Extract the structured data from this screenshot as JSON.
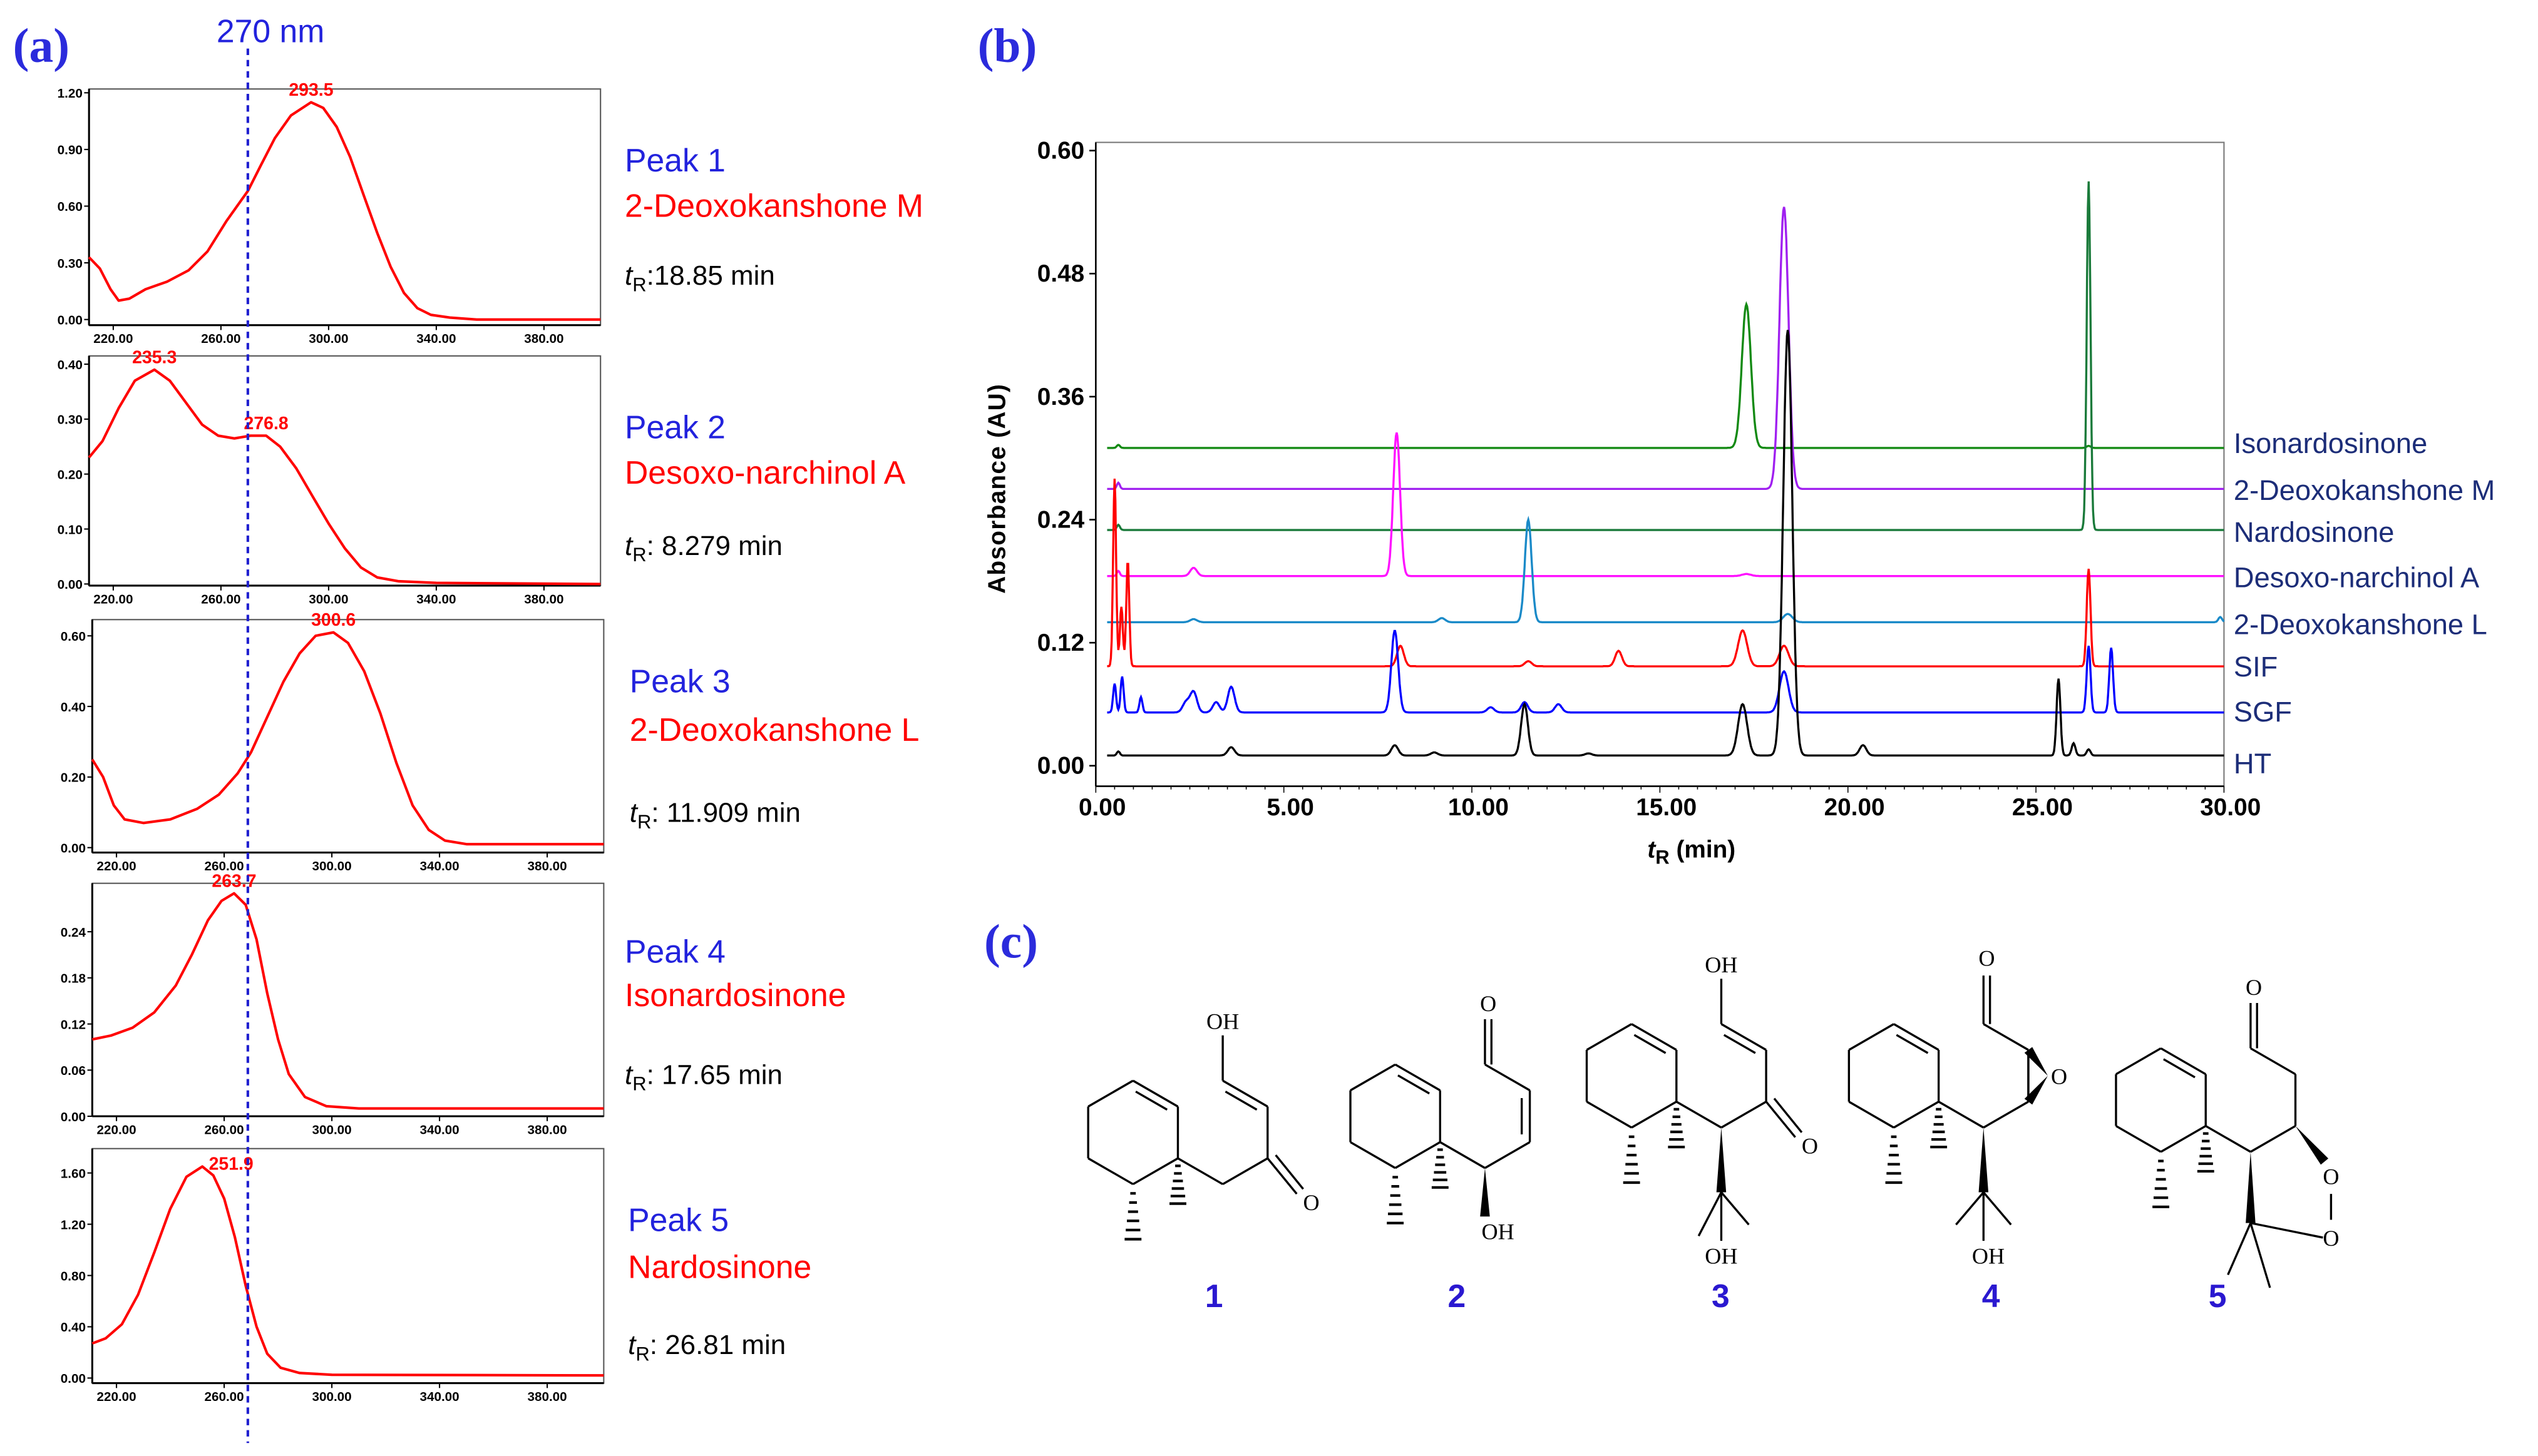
{
  "panels": {
    "a": "(a)",
    "b": "(b)",
    "c": "(c)"
  },
  "wavelength_marker": {
    "label": "270 nm",
    "value": 270,
    "color": "#2020d0"
  },
  "chart_data": [
    {
      "type": "line",
      "panel": "a",
      "name": "Peak 1 UV spectrum",
      "xlim": [
        211,
        401
      ],
      "ylim": [
        -0.03,
        1.22
      ],
      "xticks": [
        "220.00",
        "260.00",
        "300.00",
        "340.00",
        "380.00"
      ],
      "yticks": [
        "0.00",
        "0.30",
        "0.60",
        "0.90",
        "1.20"
      ],
      "color": "#ff0000",
      "annotations": [
        {
          "x": 293.5,
          "y": 1.15,
          "label": "293.5"
        }
      ],
      "points": [
        [
          211,
          0.33
        ],
        [
          215,
          0.27
        ],
        [
          219,
          0.16
        ],
        [
          222,
          0.1
        ],
        [
          226,
          0.11
        ],
        [
          232,
          0.16
        ],
        [
          240,
          0.2
        ],
        [
          248,
          0.26
        ],
        [
          255,
          0.36
        ],
        [
          262,
          0.52
        ],
        [
          267,
          0.62
        ],
        [
          270,
          0.68
        ],
        [
          275,
          0.82
        ],
        [
          280,
          0.96
        ],
        [
          286,
          1.08
        ],
        [
          293.5,
          1.15
        ],
        [
          298,
          1.12
        ],
        [
          303,
          1.02
        ],
        [
          308,
          0.86
        ],
        [
          313,
          0.66
        ],
        [
          318,
          0.46
        ],
        [
          323,
          0.28
        ],
        [
          328,
          0.14
        ],
        [
          333,
          0.06
        ],
        [
          338,
          0.025
        ],
        [
          345,
          0.01
        ],
        [
          355,
          0.0
        ],
        [
          401,
          0.0
        ]
      ],
      "peak": {
        "title": "Peak 1",
        "compound": "2-Deoxokanshone M",
        "tr_symbol": "t",
        "tr_sub": "R",
        "tr_value": ":18.85 min"
      }
    },
    {
      "type": "line",
      "panel": "a",
      "name": "Peak 2 UV spectrum",
      "xlim": [
        211,
        401
      ],
      "ylim": [
        -0.003,
        0.415
      ],
      "xticks": [
        "220.00",
        "260.00",
        "300.00",
        "340.00",
        "380.00"
      ],
      "yticks": [
        "0.00",
        "0.10",
        "0.20",
        "0.30",
        "0.40"
      ],
      "color": "#ff0000",
      "annotations": [
        {
          "x": 235.3,
          "y": 0.39,
          "label": "235.3"
        },
        {
          "x": 276.8,
          "y": 0.27,
          "label": "276.8"
        }
      ],
      "points": [
        [
          211,
          0.23
        ],
        [
          216,
          0.26
        ],
        [
          222,
          0.32
        ],
        [
          228,
          0.37
        ],
        [
          235.3,
          0.39
        ],
        [
          241,
          0.37
        ],
        [
          247,
          0.33
        ],
        [
          253,
          0.29
        ],
        [
          259,
          0.27
        ],
        [
          265,
          0.265
        ],
        [
          271,
          0.27
        ],
        [
          276.8,
          0.27
        ],
        [
          282,
          0.25
        ],
        [
          288,
          0.21
        ],
        [
          294,
          0.16
        ],
        [
          300,
          0.11
        ],
        [
          306,
          0.065
        ],
        [
          312,
          0.03
        ],
        [
          318,
          0.012
        ],
        [
          326,
          0.005
        ],
        [
          340,
          0.002
        ],
        [
          401,
          0.0
        ]
      ],
      "peak": {
        "title": "Peak 2",
        "compound": "Desoxo-narchinol A",
        "tr_symbol": "t",
        "tr_sub": "R",
        "tr_value": ": 8.279 min"
      }
    },
    {
      "type": "line",
      "panel": "a",
      "name": "Peak 3 UV spectrum",
      "xlim": [
        211,
        401
      ],
      "ylim": [
        -0.014,
        0.646
      ],
      "xticks": [
        "220.00",
        "260.00",
        "300.00",
        "340.00",
        "380.00"
      ],
      "yticks": [
        "0.00",
        "0.20",
        "0.40",
        "0.60"
      ],
      "color": "#ff0000",
      "annotations": [
        {
          "x": 300.6,
          "y": 0.61,
          "label": "300.6"
        }
      ],
      "points": [
        [
          211,
          0.25
        ],
        [
          215,
          0.2
        ],
        [
          219,
          0.12
        ],
        [
          223,
          0.08
        ],
        [
          230,
          0.07
        ],
        [
          240,
          0.08
        ],
        [
          250,
          0.11
        ],
        [
          258,
          0.15
        ],
        [
          265,
          0.21
        ],
        [
          270,
          0.27
        ],
        [
          276,
          0.37
        ],
        [
          282,
          0.47
        ],
        [
          288,
          0.55
        ],
        [
          294,
          0.6
        ],
        [
          300.6,
          0.61
        ],
        [
          306,
          0.58
        ],
        [
          312,
          0.5
        ],
        [
          318,
          0.38
        ],
        [
          324,
          0.24
        ],
        [
          330,
          0.12
        ],
        [
          336,
          0.05
        ],
        [
          342,
          0.02
        ],
        [
          350,
          0.01
        ],
        [
          401,
          0.01
        ]
      ],
      "peak": {
        "title": "Peak 3",
        "compound": "2-Deoxokanshone L",
        "tr_symbol": "t",
        "tr_sub": "R",
        "tr_value": ": 11.909 min"
      }
    },
    {
      "type": "line",
      "panel": "a",
      "name": "Peak 4 UV spectrum",
      "xlim": [
        211,
        401
      ],
      "ylim": [
        0.0,
        0.303
      ],
      "xticks": [
        "220.00",
        "260.00",
        "300.00",
        "340.00",
        "380.00"
      ],
      "yticks": [
        "0.00",
        "0.06",
        "0.12",
        "0.18",
        "0.24"
      ],
      "color": "#ff0000",
      "annotations": [
        {
          "x": 263.7,
          "y": 0.29,
          "label": "263.7"
        }
      ],
      "points": [
        [
          211,
          0.1
        ],
        [
          218,
          0.105
        ],
        [
          226,
          0.115
        ],
        [
          234,
          0.135
        ],
        [
          242,
          0.17
        ],
        [
          248,
          0.21
        ],
        [
          254,
          0.255
        ],
        [
          259,
          0.28
        ],
        [
          263.7,
          0.29
        ],
        [
          268,
          0.275
        ],
        [
          272,
          0.23
        ],
        [
          276,
          0.16
        ],
        [
          280,
          0.1
        ],
        [
          284,
          0.055
        ],
        [
          290,
          0.025
        ],
        [
          298,
          0.013
        ],
        [
          310,
          0.01
        ],
        [
          401,
          0.01
        ]
      ],
      "peak": {
        "title": "Peak 4",
        "compound": "Isonardosinone",
        "tr_symbol": "t",
        "tr_sub": "R",
        "tr_value": ": 17.65 min"
      }
    },
    {
      "type": "line",
      "panel": "a",
      "name": "Peak 5 UV spectrum",
      "xlim": [
        211,
        401
      ],
      "ylim": [
        -0.04,
        1.79
      ],
      "xticks": [
        "220.00",
        "260.00",
        "300.00",
        "340.00",
        "380.00"
      ],
      "yticks": [
        "0.00",
        "0.40",
        "0.80",
        "1.20",
        "1.60"
      ],
      "color": "#ff0000",
      "annotations": [
        {
          "x": 251.9,
          "y": 1.65,
          "label": "251.9"
        }
      ],
      "points": [
        [
          211,
          0.27
        ],
        [
          216,
          0.31
        ],
        [
          222,
          0.42
        ],
        [
          228,
          0.65
        ],
        [
          234,
          0.98
        ],
        [
          240,
          1.32
        ],
        [
          246,
          1.57
        ],
        [
          251.9,
          1.65
        ],
        [
          256,
          1.58
        ],
        [
          260,
          1.4
        ],
        [
          264,
          1.1
        ],
        [
          268,
          0.72
        ],
        [
          272,
          0.4
        ],
        [
          276,
          0.19
        ],
        [
          281,
          0.08
        ],
        [
          288,
          0.04
        ],
        [
          300,
          0.025
        ],
        [
          401,
          0.02
        ]
      ],
      "peak": {
        "title": "Peak 5",
        "compound": "Nardosinone",
        "tr_symbol": "t",
        "tr_sub": "R",
        "tr_value": ": 26.81 min"
      }
    },
    {
      "type": "line",
      "panel": "b",
      "xlabel_symbol": "t",
      "xlabel_sub": "R",
      "xlabel_rest": " (min)",
      "ylabel": "Absorbance (AU)",
      "xlim": [
        0,
        30
      ],
      "ylim": [
        -0.02,
        0.608
      ],
      "xticks": [
        "0.00",
        "5.00",
        "10.00",
        "15.00",
        "20.00",
        "25.00",
        "30.00"
      ],
      "xtick_values": [
        0,
        5,
        10,
        15,
        20,
        25,
        30
      ],
      "yticks": [
        "0.00",
        "0.12",
        "0.24",
        "0.36",
        "0.48",
        "0.60"
      ],
      "ytick_values": [
        0,
        0.12,
        0.24,
        0.36,
        0.48,
        0.6
      ],
      "series": [
        {
          "name": "Isonardosinone",
          "color": "#138a13",
          "baseline": 0.31,
          "peaks": [
            [
              0.6,
              0.313
            ],
            [
              17.3,
              0.45
            ],
            [
              26.4,
              0.312
            ]
          ]
        },
        {
          "name": "2-Deoxokanshone M",
          "color": "#a020f0",
          "baseline": 0.27,
          "peaks": [
            [
              0.6,
              0.276
            ],
            [
              18.3,
              0.545
            ]
          ]
        },
        {
          "name": "Nardosinone",
          "color": "#1a7a3a",
          "baseline": 0.23,
          "peaks": [
            [
              0.6,
              0.235
            ],
            [
              26.4,
              0.57
            ]
          ]
        },
        {
          "name": "Desoxo-narchinol A",
          "color": "#ff10ff",
          "baseline": 0.185,
          "peaks": [
            [
              0.6,
              0.19
            ],
            [
              2.6,
              0.193
            ],
            [
              8.0,
              0.325
            ],
            [
              17.3,
              0.187
            ]
          ]
        },
        {
          "name": "2-Deoxokanshone L",
          "color": "#1a8ac8",
          "baseline": 0.14,
          "peaks": [
            [
              2.6,
              0.143
            ],
            [
              9.2,
              0.144
            ],
            [
              11.5,
              0.24
            ],
            [
              18.4,
              0.148
            ],
            [
              29.9,
              0.145
            ]
          ]
        },
        {
          "name": "SIF",
          "color": "#ff0000",
          "baseline": 0.097,
          "peaks": [
            [
              0.5,
              0.28
            ],
            [
              0.68,
              0.155
            ],
            [
              0.85,
              0.2
            ],
            [
              8.1,
              0.117
            ],
            [
              11.5,
              0.102
            ],
            [
              13.9,
              0.112
            ],
            [
              17.2,
              0.132
            ],
            [
              18.3,
              0.117
            ],
            [
              26.4,
              0.192
            ]
          ]
        },
        {
          "name": "SGF",
          "color": "#0000ff",
          "baseline": 0.052,
          "peaks": [
            [
              0.5,
              0.08
            ],
            [
              0.7,
              0.087
            ],
            [
              1.2,
              0.067
            ],
            [
              2.4,
              0.062
            ],
            [
              2.6,
              0.072
            ],
            [
              3.2,
              0.062
            ],
            [
              3.6,
              0.077
            ],
            [
              7.95,
              0.132
            ],
            [
              10.5,
              0.057
            ],
            [
              11.4,
              0.062
            ],
            [
              12.3,
              0.06
            ],
            [
              18.3,
              0.092
            ],
            [
              26.4,
              0.117
            ],
            [
              27.0,
              0.115
            ]
          ]
        },
        {
          "name": "HT",
          "color": "#000000",
          "baseline": 0.01,
          "peaks": [
            [
              0.6,
              0.014
            ],
            [
              3.6,
              0.018
            ],
            [
              7.95,
              0.02
            ],
            [
              9.0,
              0.013
            ],
            [
              11.4,
              0.06
            ],
            [
              13.1,
              0.012
            ],
            [
              17.2,
              0.06
            ],
            [
              18.4,
              0.425
            ],
            [
              20.4,
              0.02
            ],
            [
              25.6,
              0.085
            ],
            [
              26.0,
              0.022
            ],
            [
              26.4,
              0.016
            ]
          ]
        }
      ]
    }
  ],
  "structures": [
    {
      "number": "1",
      "labels": {
        "oh_top": "OH",
        "o_ketone": "O"
      }
    },
    {
      "number": "2",
      "labels": {
        "o_top": "O",
        "oh_bottom": "OH"
      }
    },
    {
      "number": "3",
      "labels": {
        "oh_top": "OH",
        "o_ketone": "O",
        "oh_bottom": "OH"
      }
    },
    {
      "number": "4",
      "labels": {
        "o_top": "O",
        "o_epoxide": "O",
        "oh_bottom": "OH"
      }
    },
    {
      "number": "5",
      "labels": {
        "o_top": "O",
        "o_peroxide_1": "O",
        "o_peroxide_2": "O"
      }
    }
  ]
}
